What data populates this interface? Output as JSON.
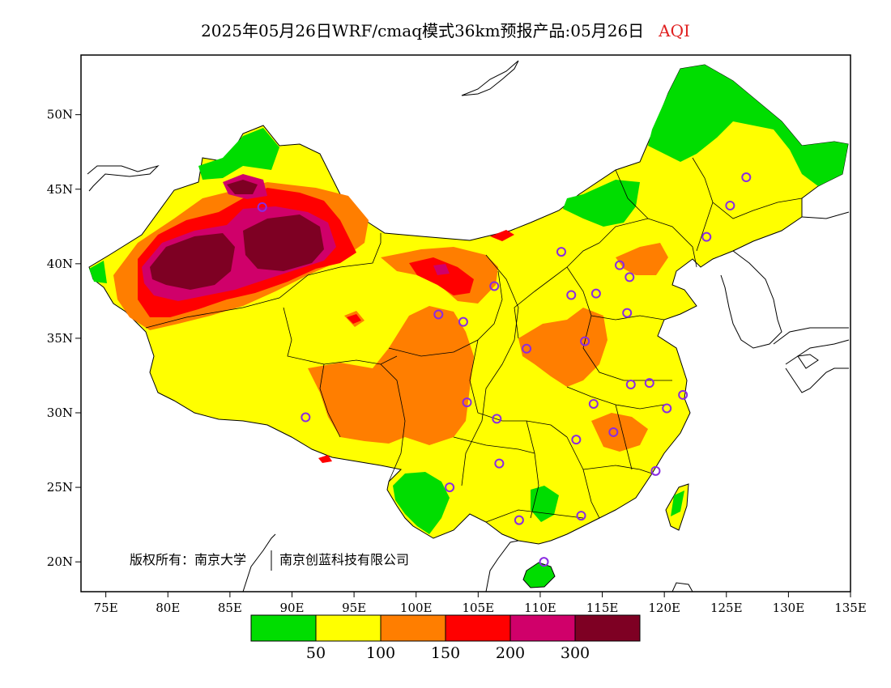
{
  "title": {
    "text": "2025年05月26日WRF/cmaq模式36km预报产品:05月26日",
    "product": "AQI"
  },
  "map": {
    "lon_ticks": [
      "75E",
      "80E",
      "85E",
      "90E",
      "95E",
      "100E",
      "105E",
      "110E",
      "115E",
      "120E",
      "125E",
      "130E",
      "135E"
    ],
    "lat_ticks": [
      "50N",
      "45N",
      "40N",
      "35N",
      "30N",
      "25N",
      "20N"
    ],
    "lon_range": [
      73,
      135
    ],
    "lat_range": [
      18,
      54
    ],
    "copyright": "版权所有：南京大学",
    "copyright2": "南京创蓝科技有限公司"
  },
  "colorbar": {
    "colors": [
      "#00dd00",
      "#ffff00",
      "#ff7e00",
      "#ff0000",
      "#d0006a",
      "#7e0023"
    ],
    "labels": [
      "50",
      "100",
      "150",
      "200",
      "300"
    ]
  },
  "stations": [
    [
      87.6,
      43.8
    ],
    [
      91.1,
      29.7
    ],
    [
      101.8,
      36.6
    ],
    [
      103.8,
      36.1
    ],
    [
      106.3,
      38.5
    ],
    [
      108.9,
      34.3
    ],
    [
      104.1,
      30.7
    ],
    [
      106.5,
      29.6
    ],
    [
      106.7,
      26.6
    ],
    [
      102.7,
      25.0
    ],
    [
      108.3,
      22.8
    ],
    [
      110.3,
      20.0
    ],
    [
      113.3,
      23.1
    ],
    [
      114.3,
      30.6
    ],
    [
      112.9,
      28.2
    ],
    [
      115.9,
      28.7
    ],
    [
      119.3,
      26.1
    ],
    [
      120.2,
      30.3
    ],
    [
      118.8,
      32.0
    ],
    [
      117.3,
      31.9
    ],
    [
      113.6,
      34.8
    ],
    [
      112.5,
      37.9
    ],
    [
      114.5,
      38.0
    ],
    [
      116.4,
      39.9
    ],
    [
      117.2,
      39.1
    ],
    [
      117.0,
      36.7
    ],
    [
      111.7,
      40.8
    ],
    [
      123.4,
      41.8
    ],
    [
      125.3,
      43.9
    ],
    [
      126.6,
      45.8
    ],
    [
      121.5,
      31.2
    ]
  ]
}
